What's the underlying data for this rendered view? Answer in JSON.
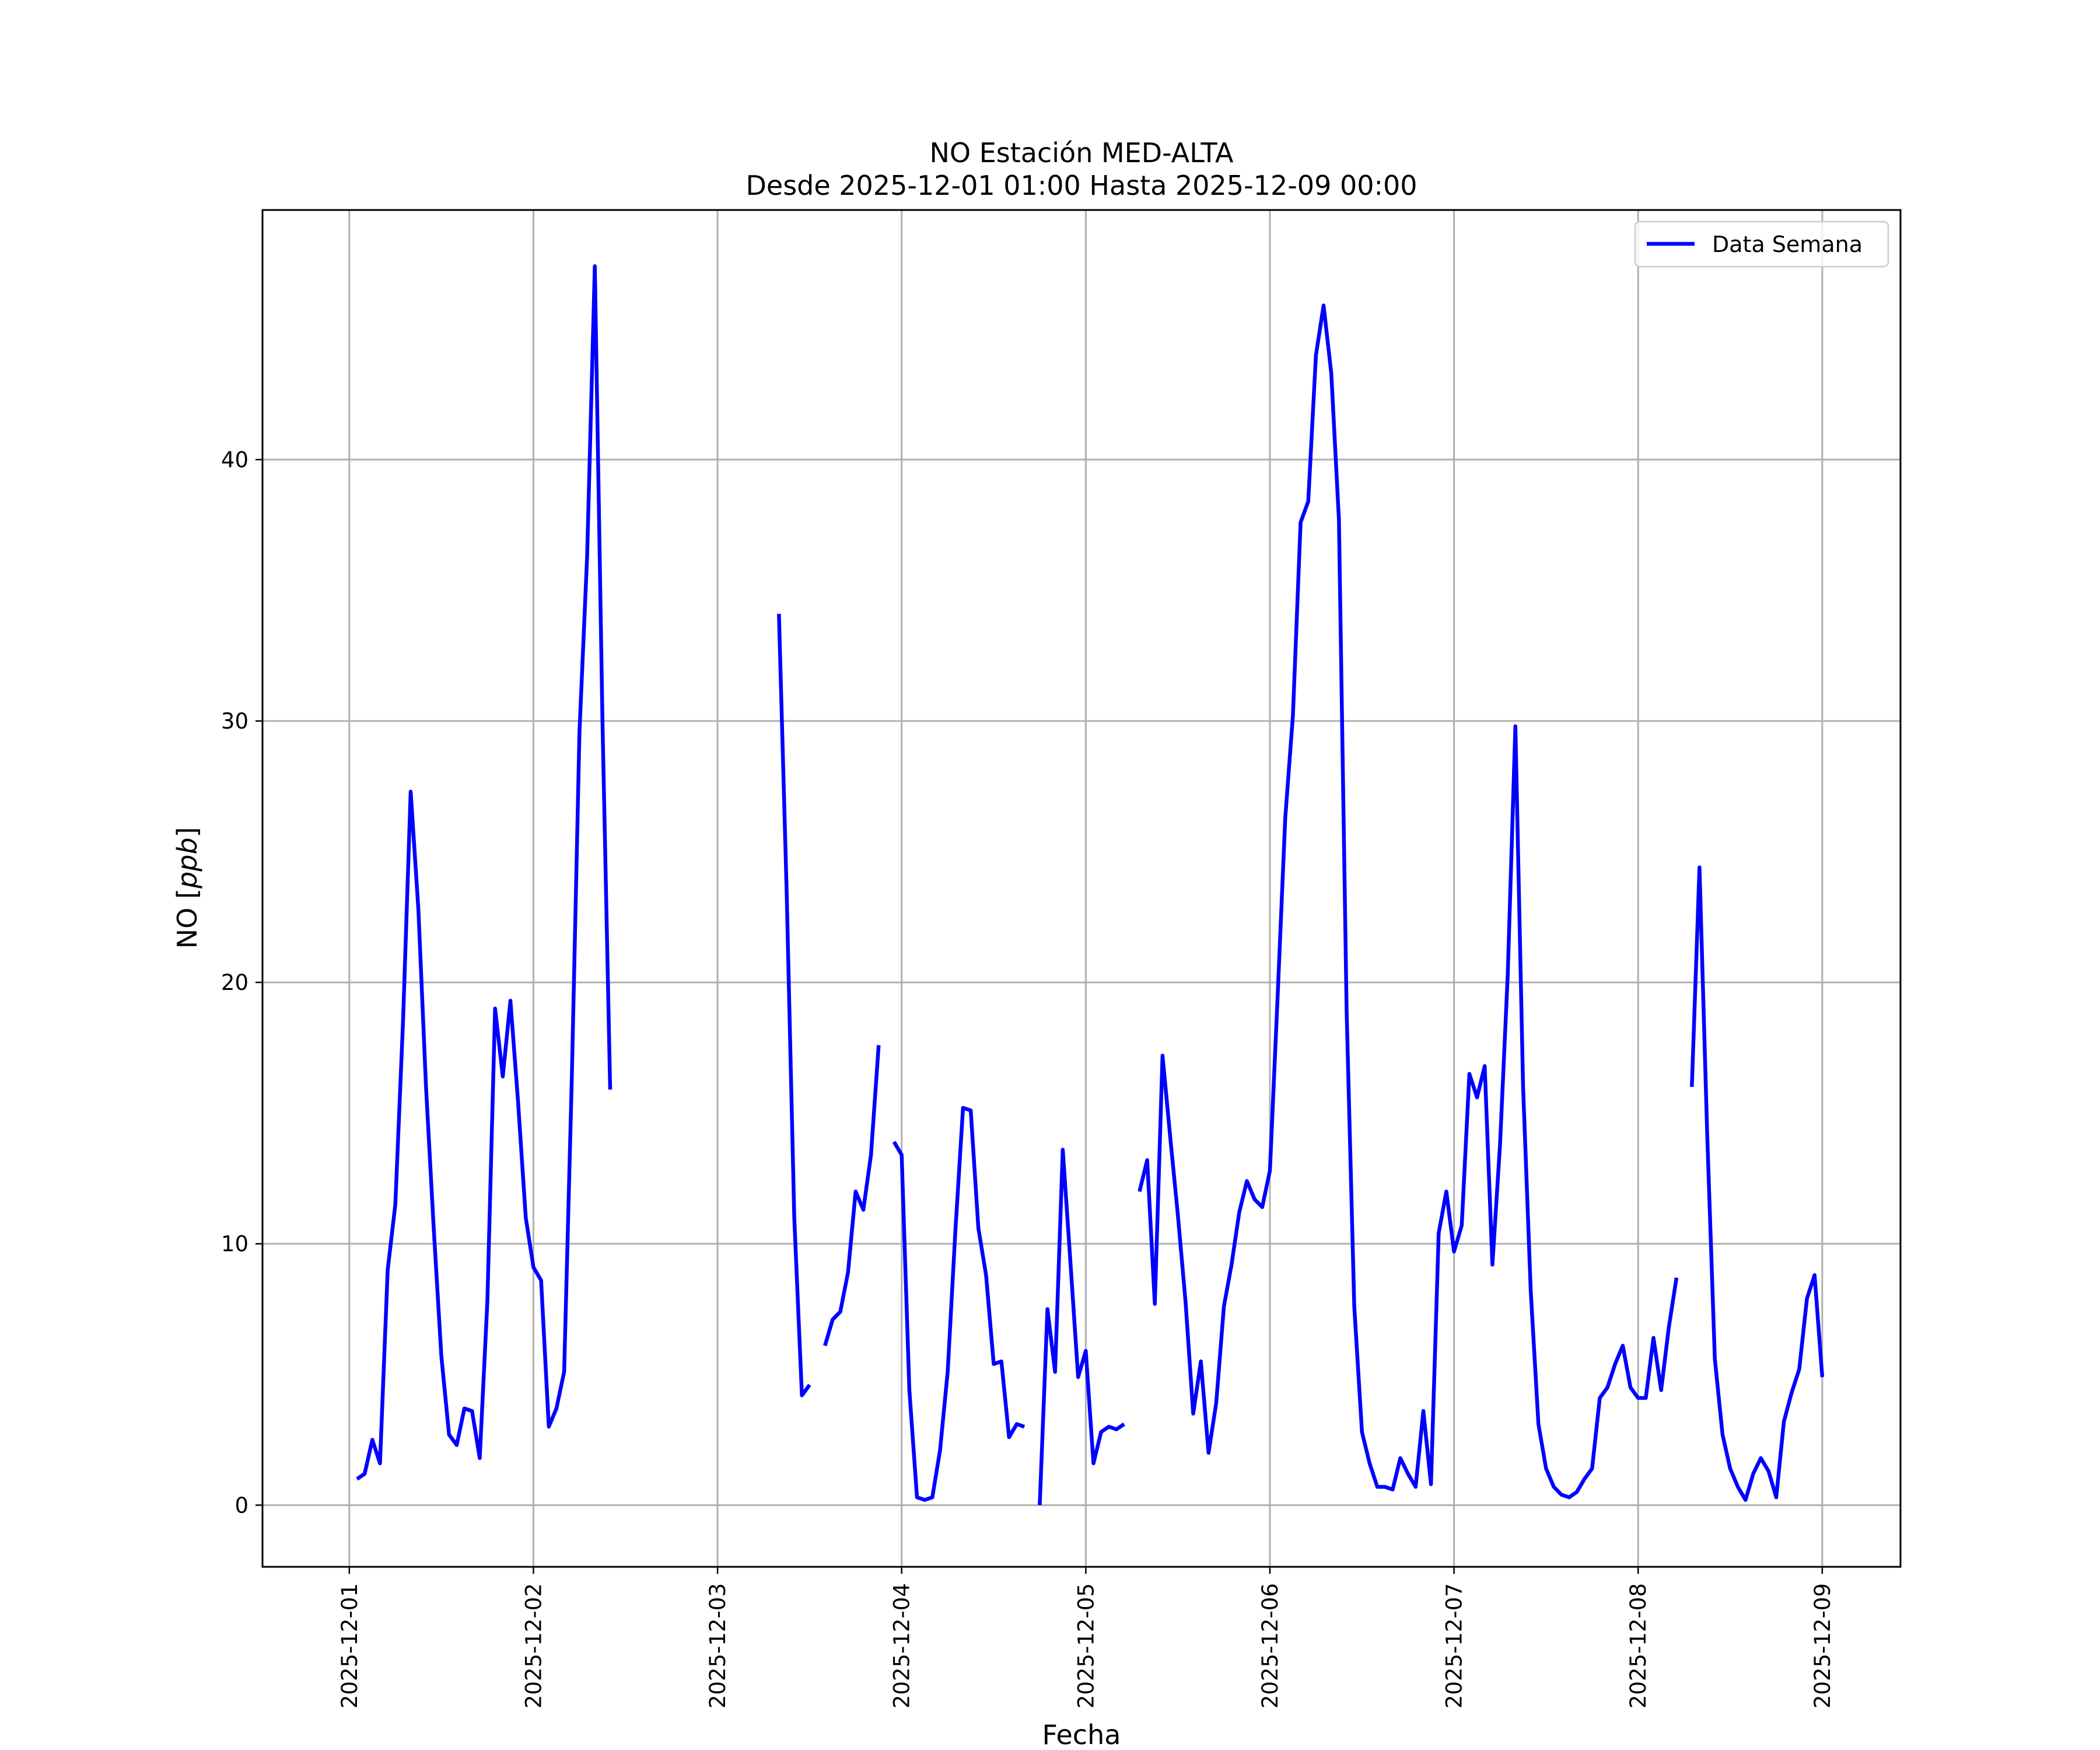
{
  "chart_data": {
    "type": "line",
    "title": "NO Estación MED-ALTA",
    "subtitle": "Desde 2025-12-01 01:00 Hasta 2025-12-09 00:00",
    "xlabel": "Fecha",
    "ylabel_main": "NO ",
    "ylabel_unit": "ppb",
    "x_range": [
      "2025-11-30 12:41",
      "2025-12-09 10:12"
    ],
    "ylim": [
      -2.36,
      49.55
    ],
    "x_ticks": [
      "2025-12-01",
      "2025-12-02",
      "2025-12-03",
      "2025-12-04",
      "2025-12-05",
      "2025-12-06",
      "2025-12-07",
      "2025-12-08",
      "2025-12-09"
    ],
    "y_ticks": [
      0,
      10,
      20,
      30,
      40
    ],
    "grid": true,
    "legend_position": "upper right",
    "series": [
      {
        "name": "Data Semana",
        "color": "#0000ff",
        "segments": [
          [
            [
              "2025-12-01 01:00",
              1.0
            ],
            [
              "2025-12-01 02:00",
              1.2
            ],
            [
              "2025-12-01 03:00",
              2.5
            ],
            [
              "2025-12-01 04:00",
              1.6
            ],
            [
              "2025-12-01 05:00",
              9.0
            ],
            [
              "2025-12-01 06:00",
              11.5
            ],
            [
              "2025-12-01 07:00",
              18.5
            ],
            [
              "2025-12-01 08:00",
              27.3
            ],
            [
              "2025-12-01 09:00",
              22.8
            ],
            [
              "2025-12-01 10:00",
              16.0
            ],
            [
              "2025-12-01 11:00",
              10.6
            ],
            [
              "2025-12-01 12:00",
              5.7
            ],
            [
              "2025-12-01 13:00",
              2.7
            ],
            [
              "2025-12-01 14:00",
              2.3
            ],
            [
              "2025-12-01 15:00",
              3.7
            ],
            [
              "2025-12-01 16:00",
              3.6
            ],
            [
              "2025-12-01 17:00",
              1.8
            ],
            [
              "2025-12-01 18:00",
              7.8
            ],
            [
              "2025-12-01 19:00",
              19.0
            ],
            [
              "2025-12-01 20:00",
              16.4
            ],
            [
              "2025-12-01 21:00",
              19.3
            ],
            [
              "2025-12-01 22:00",
              15.4
            ],
            [
              "2025-12-01 23:00",
              11.0
            ],
            [
              "2025-12-02 00:00",
              9.1
            ],
            [
              "2025-12-02 01:00",
              8.6
            ],
            [
              "2025-12-02 02:00",
              3.0
            ],
            [
              "2025-12-02 03:00",
              3.7
            ],
            [
              "2025-12-02 04:00",
              5.1
            ],
            [
              "2025-12-02 05:00",
              16.3
            ],
            [
              "2025-12-02 06:00",
              29.6
            ],
            [
              "2025-12-02 07:00",
              36.3
            ],
            [
              "2025-12-02 08:00",
              47.4
            ],
            [
              "2025-12-02 09:00",
              30.0
            ],
            [
              "2025-12-02 10:00",
              15.9
            ]
          ],
          [
            [
              "2025-12-03 08:00",
              34.1
            ],
            [
              "2025-12-03 09:00",
              23.6
            ],
            [
              "2025-12-03 10:00",
              11.0
            ],
            [
              "2025-12-03 11:00",
              4.2
            ],
            [
              "2025-12-03 12:00",
              4.6
            ]
          ],
          [
            [
              "2025-12-03 14:00",
              6.1
            ],
            [
              "2025-12-03 15:00",
              7.1
            ],
            [
              "2025-12-03 16:00",
              7.4
            ],
            [
              "2025-12-03 17:00",
              8.9
            ],
            [
              "2025-12-03 18:00",
              12.0
            ],
            [
              "2025-12-03 19:00",
              11.3
            ],
            [
              "2025-12-03 20:00",
              13.4
            ],
            [
              "2025-12-03 21:00",
              17.6
            ]
          ],
          [
            [
              "2025-12-03 23:00",
              13.9
            ],
            [
              "2025-12-04 00:00",
              13.4
            ],
            [
              "2025-12-04 01:00",
              4.4
            ],
            [
              "2025-12-04 02:00",
              0.3
            ],
            [
              "2025-12-04 03:00",
              0.2
            ],
            [
              "2025-12-04 04:00",
              0.3
            ],
            [
              "2025-12-04 05:00",
              2.1
            ],
            [
              "2025-12-04 06:00",
              5.1
            ],
            [
              "2025-12-04 07:00",
              10.5
            ],
            [
              "2025-12-04 08:00",
              15.2
            ],
            [
              "2025-12-04 09:00",
              15.1
            ],
            [
              "2025-12-04 10:00",
              10.6
            ],
            [
              "2025-12-04 11:00",
              8.8
            ],
            [
              "2025-12-04 12:00",
              5.4
            ],
            [
              "2025-12-04 13:00",
              5.5
            ],
            [
              "2025-12-04 14:00",
              2.6
            ],
            [
              "2025-12-04 15:00",
              3.1
            ],
            [
              "2025-12-04 16:00",
              3.0
            ]
          ],
          [
            [
              "2025-12-04 18:00",
              0.0
            ],
            [
              "2025-12-04 19:00",
              7.5
            ],
            [
              "2025-12-04 20:00",
              5.1
            ],
            [
              "2025-12-04 21:00",
              13.6
            ],
            [
              "2025-12-04 22:00",
              9.3
            ],
            [
              "2025-12-04 23:00",
              4.9
            ],
            [
              "2025-12-05 00:00",
              5.9
            ],
            [
              "2025-12-05 01:00",
              1.6
            ],
            [
              "2025-12-05 02:00",
              2.8
            ],
            [
              "2025-12-05 03:00",
              3.0
            ],
            [
              "2025-12-05 04:00",
              2.9
            ],
            [
              "2025-12-05 05:00",
              3.1
            ]
          ],
          [
            [
              "2025-12-05 07:00",
              12.0
            ],
            [
              "2025-12-05 08:00",
              13.2
            ],
            [
              "2025-12-05 09:00",
              7.7
            ],
            [
              "2025-12-05 10:00",
              17.2
            ],
            [
              "2025-12-05 11:00",
              14.1
            ],
            [
              "2025-12-05 12:00",
              11.1
            ],
            [
              "2025-12-05 13:00",
              7.8
            ],
            [
              "2025-12-05 14:00",
              3.5
            ],
            [
              "2025-12-05 15:00",
              5.5
            ],
            [
              "2025-12-05 16:00",
              2.0
            ],
            [
              "2025-12-05 17:00",
              3.9
            ],
            [
              "2025-12-05 18:00",
              7.6
            ],
            [
              "2025-12-05 19:00",
              9.2
            ],
            [
              "2025-12-05 20:00",
              11.2
            ],
            [
              "2025-12-05 21:00",
              12.4
            ],
            [
              "2025-12-05 22:00",
              11.7
            ],
            [
              "2025-12-05 23:00",
              11.4
            ],
            [
              "2025-12-06 00:00",
              12.8
            ],
            [
              "2025-12-06 01:00",
              19.4
            ],
            [
              "2025-12-06 02:00",
              26.3
            ],
            [
              "2025-12-06 03:00",
              30.2
            ],
            [
              "2025-12-06 04:00",
              37.6
            ],
            [
              "2025-12-06 05:00",
              38.4
            ],
            [
              "2025-12-06 06:00",
              44.0
            ],
            [
              "2025-12-06 07:00",
              45.9
            ],
            [
              "2025-12-06 08:00",
              43.3
            ],
            [
              "2025-12-06 09:00",
              37.7
            ],
            [
              "2025-12-06 10:00",
              18.9
            ],
            [
              "2025-12-06 11:00",
              7.6
            ],
            [
              "2025-12-06 12:00",
              2.8
            ],
            [
              "2025-12-06 13:00",
              1.6
            ],
            [
              "2025-12-06 14:00",
              0.7
            ],
            [
              "2025-12-06 15:00",
              0.7
            ],
            [
              "2025-12-06 16:00",
              0.6
            ],
            [
              "2025-12-06 17:00",
              1.8
            ],
            [
              "2025-12-06 18:00",
              1.2
            ],
            [
              "2025-12-06 19:00",
              0.7
            ],
            [
              "2025-12-06 20:00",
              3.6
            ],
            [
              "2025-12-06 21:00",
              0.8
            ],
            [
              "2025-12-06 22:00",
              10.4
            ],
            [
              "2025-12-06 23:00",
              12.0
            ],
            [
              "2025-12-07 00:00",
              9.7
            ],
            [
              "2025-12-07 01:00",
              10.7
            ],
            [
              "2025-12-07 02:00",
              16.5
            ],
            [
              "2025-12-07 03:00",
              15.6
            ],
            [
              "2025-12-07 04:00",
              16.8
            ],
            [
              "2025-12-07 05:00",
              9.2
            ],
            [
              "2025-12-07 06:00",
              13.8
            ],
            [
              "2025-12-07 07:00",
              20.3
            ],
            [
              "2025-12-07 08:00",
              29.8
            ],
            [
              "2025-12-07 09:00",
              16.0
            ],
            [
              "2025-12-07 10:00",
              8.2
            ],
            [
              "2025-12-07 11:00",
              3.1
            ],
            [
              "2025-12-07 12:00",
              1.4
            ],
            [
              "2025-12-07 13:00",
              0.7
            ],
            [
              "2025-12-07 14:00",
              0.4
            ],
            [
              "2025-12-07 15:00",
              0.3
            ],
            [
              "2025-12-07 16:00",
              0.5
            ],
            [
              "2025-12-07 17:00",
              1.0
            ],
            [
              "2025-12-07 18:00",
              1.4
            ],
            [
              "2025-12-07 19:00",
              4.1
            ],
            [
              "2025-12-07 20:00",
              4.5
            ],
            [
              "2025-12-07 21:00",
              5.4
            ],
            [
              "2025-12-07 22:00",
              6.1
            ],
            [
              "2025-12-07 23:00",
              4.5
            ],
            [
              "2025-12-08 00:00",
              4.1
            ],
            [
              "2025-12-08 01:00",
              4.1
            ],
            [
              "2025-12-08 02:00",
              6.4
            ],
            [
              "2025-12-08 03:00",
              4.4
            ],
            [
              "2025-12-08 04:00",
              6.8
            ],
            [
              "2025-12-08 05:00",
              8.7
            ]
          ],
          [
            [
              "2025-12-08 07:00",
              16.0
            ],
            [
              "2025-12-08 08:00",
              24.4
            ],
            [
              "2025-12-08 09:00",
              14.2
            ],
            [
              "2025-12-08 10:00",
              5.6
            ],
            [
              "2025-12-08 11:00",
              2.7
            ],
            [
              "2025-12-08 12:00",
              1.4
            ],
            [
              "2025-12-08 13:00",
              0.7
            ],
            [
              "2025-12-08 14:00",
              0.2
            ],
            [
              "2025-12-08 15:00",
              1.2
            ],
            [
              "2025-12-08 16:00",
              1.8
            ],
            [
              "2025-12-08 17:00",
              1.3
            ],
            [
              "2025-12-08 18:00",
              0.3
            ],
            [
              "2025-12-08 19:00",
              3.2
            ],
            [
              "2025-12-08 20:00",
              4.3
            ],
            [
              "2025-12-08 21:00",
              5.2
            ],
            [
              "2025-12-08 22:00",
              7.9
            ],
            [
              "2025-12-08 23:00",
              8.8
            ],
            [
              "2025-12-09 00:00",
              4.9
            ]
          ]
        ]
      }
    ]
  }
}
